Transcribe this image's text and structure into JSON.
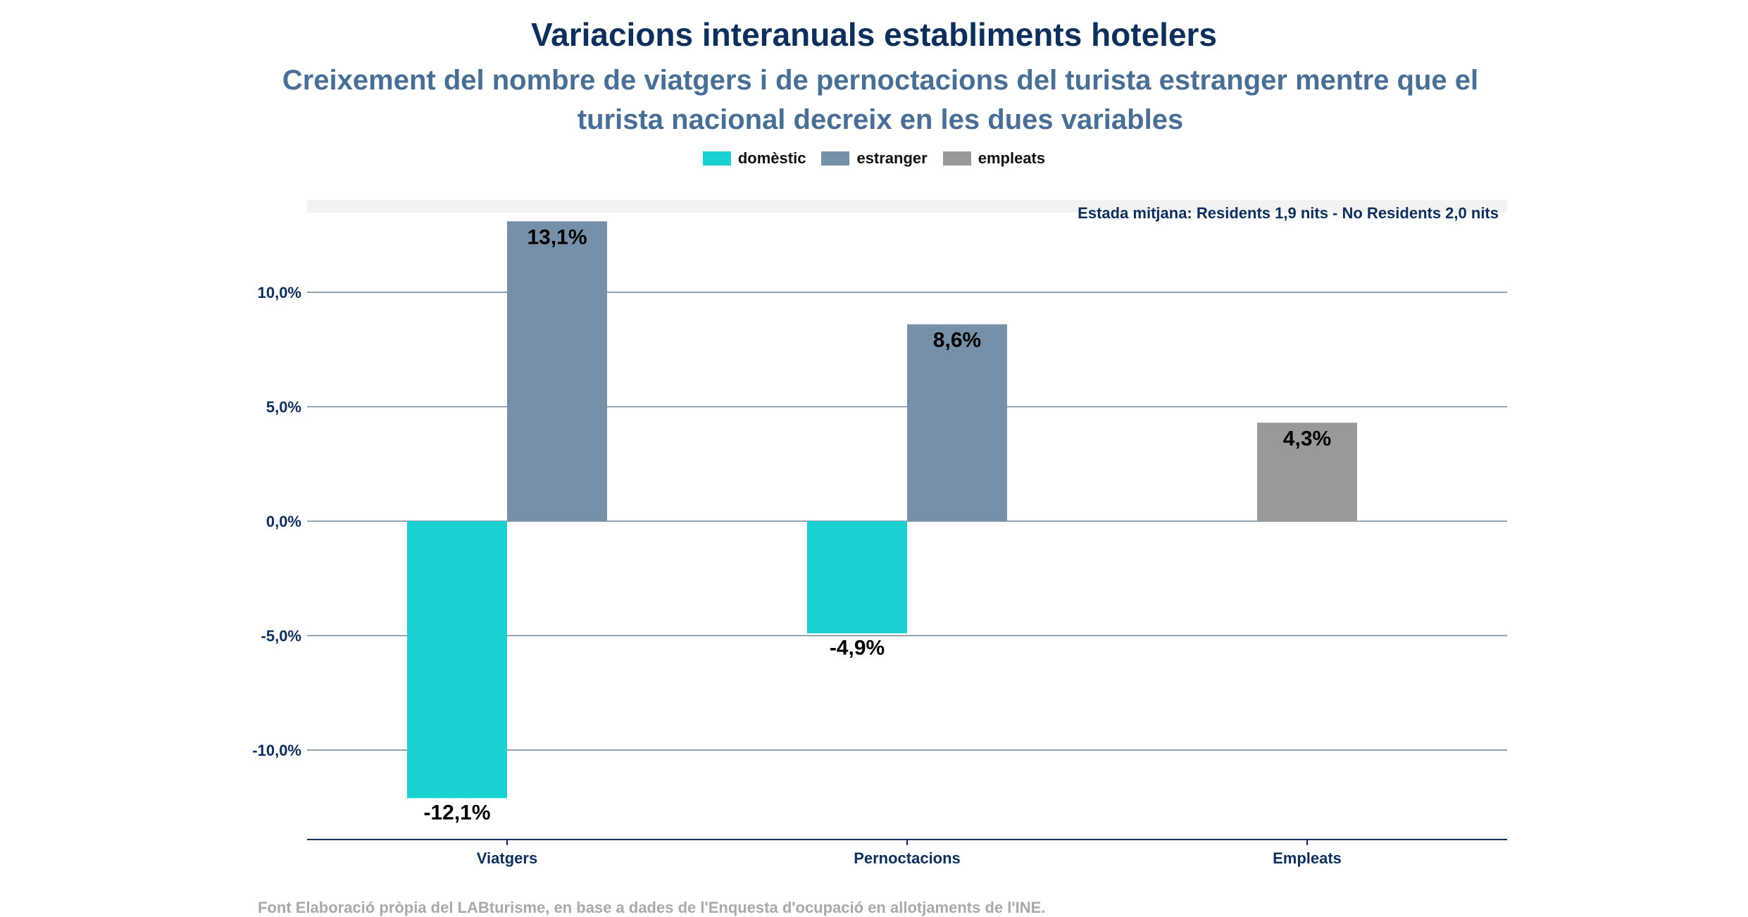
{
  "chart_data": {
    "type": "bar",
    "title": "Variacions interanuals establiments hotelers",
    "subtitle": "Creixement del nombre de viatgers i de pernoctacions del turista estranger mentre que el turista nacional decreix en les dues variables",
    "categories": [
      "Viatgers",
      "Pernoctacions",
      "Empleats"
    ],
    "series": [
      {
        "name": "domèstic",
        "color": "#1ad1d2",
        "values": [
          -12.1,
          -4.9,
          null
        ],
        "labels": [
          "-12,1%",
          "-4,9%",
          null
        ]
      },
      {
        "name": "estranger",
        "color": "#7790aa",
        "values": [
          13.1,
          8.6,
          null
        ],
        "labels": [
          "13,1%",
          "8,6%",
          null
        ]
      },
      {
        "name": "empleats",
        "color": "#999999",
        "values": [
          null,
          null,
          4.3
        ],
        "labels": [
          null,
          null,
          "4,3%"
        ]
      }
    ],
    "yticks": [
      {
        "value": 10,
        "label": "10,0%"
      },
      {
        "value": 5,
        "label": "5,0%"
      },
      {
        "value": 0,
        "label": "0,0%"
      },
      {
        "value": -5,
        "label": "-5,0%"
      },
      {
        "value": -10,
        "label": "-10,0%"
      }
    ],
    "ylim": [
      -14,
      14
    ],
    "annotation": "Estada mitjana: Residents 1,9 nits - No Residents 2,0 nits",
    "source": "Font Elaboració pròpia del LABturisme, en base a dades de l'Enquesta d'ocupació en allotjaments de l'INE.",
    "grid": true,
    "legend_position": "top"
  }
}
